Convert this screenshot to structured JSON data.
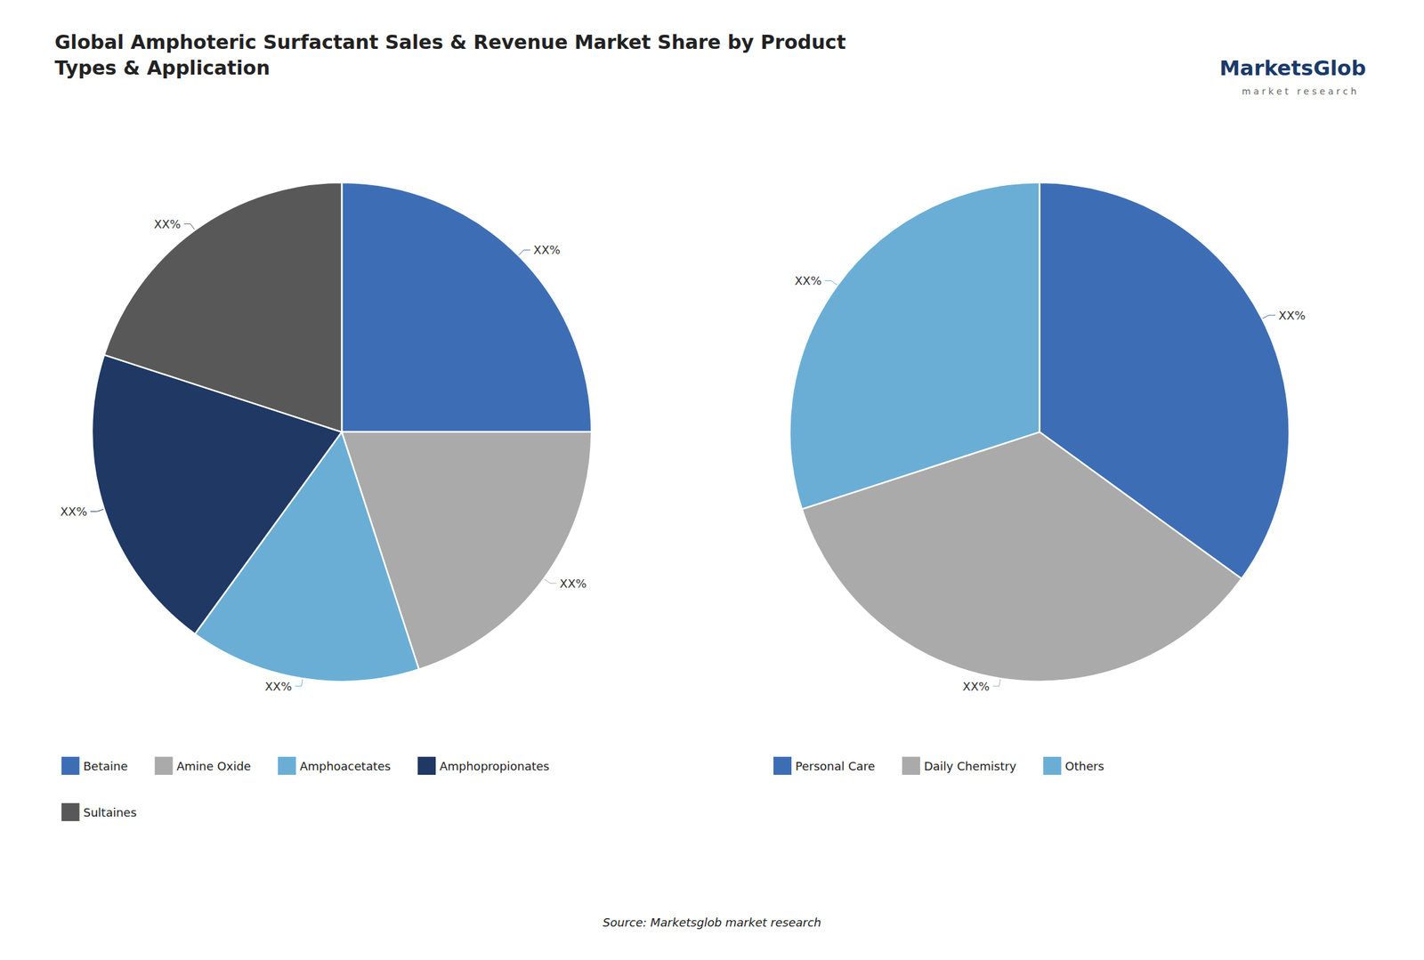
{
  "chart_data": [
    {
      "type": "pie",
      "title": "Global Amphoteric Surfactant Sales & Revenue Market Share by Product\nTypes & Application",
      "categories": [
        "Betaine",
        "Amine Oxide",
        "Amphoacetates",
        "Amphopropionates",
        "Sultaines"
      ],
      "values": [
        25,
        20,
        15,
        20,
        20
      ],
      "value_labels": [
        "XX%",
        "XX%",
        "XX%",
        "XX%",
        "XX%"
      ],
      "colors": [
        "#3d6eb5",
        "#aaaaaa",
        "#6aaed6",
        "#1f3864",
        "#585858"
      ],
      "data_labels": true,
      "legend": "bottom",
      "annotations": [
        "Source: Marketsglob market research",
        "MarketsGlob",
        "m a r k e t   r e s e a r c h"
      ]
    },
    {
      "type": "pie",
      "categories": [
        "Personal Care",
        "Daily Chemistry",
        "Others"
      ],
      "values": [
        35,
        35,
        30
      ],
      "value_labels": [
        "XX%",
        "XX%",
        "XX%"
      ],
      "colors": [
        "#3d6eb5",
        "#aaaaaa",
        "#6aaed6"
      ],
      "data_labels": true,
      "legend": "bottom"
    }
  ]
}
